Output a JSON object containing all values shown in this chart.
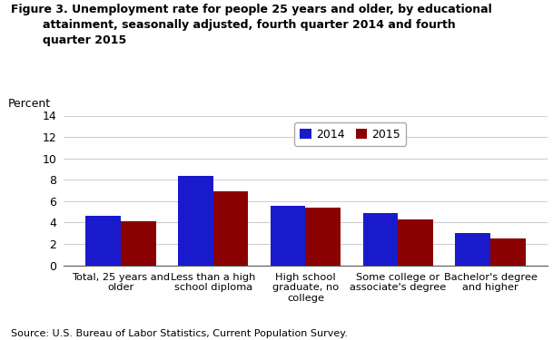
{
  "title_line1": "Figure 3. Unemployment rate for people 25 years and older, by educational",
  "title_line2": "        attainment, seasonally adjusted, fourth quarter 2014 and fourth",
  "title_line3": "        quarter 2015",
  "ylabel": "Percent",
  "categories": [
    "Total, 25 years and\nolder",
    "Less than a high\nschool diploma",
    "High school\ngraduate, no\ncollege",
    "Some college or\nassociate's degree",
    "Bachelor's degree\nand higher"
  ],
  "values_2014": [
    4.6,
    8.4,
    5.6,
    4.9,
    3.0
  ],
  "values_2015": [
    4.1,
    6.9,
    5.4,
    4.3,
    2.5
  ],
  "color_2014": "#1a1acd",
  "color_2015": "#8B0000",
  "ylim": [
    0,
    14
  ],
  "yticks": [
    0,
    2,
    4,
    6,
    8,
    10,
    12,
    14
  ],
  "legend_labels": [
    "2014",
    "2015"
  ],
  "source_text": "Source: U.S. Bureau of Labor Statistics, Current Population Survey.",
  "background_color": "#ffffff",
  "bar_width": 0.38
}
